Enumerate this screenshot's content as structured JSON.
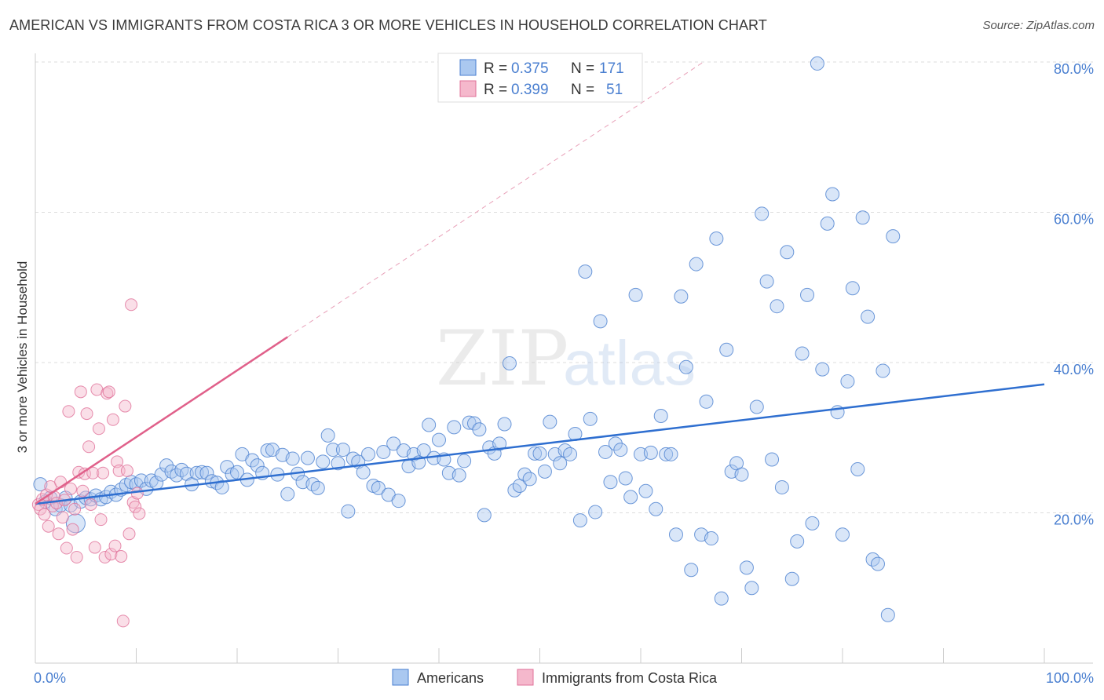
{
  "title": "AMERICAN VS IMMIGRANTS FROM COSTA RICA 3 OR MORE VEHICLES IN HOUSEHOLD CORRELATION CHART",
  "source": "Source: ZipAtlas.com",
  "watermark": {
    "zip": "ZIP",
    "atlas": "atlas"
  },
  "colors": {
    "blue": "#4a7fd0",
    "blue_fill": "#aac8f0",
    "blue_line": "#2f6fd0",
    "pink": "#e07098",
    "pink_fill": "#f5b8cc",
    "pink_line": "#e0608a",
    "grid": "#dcdcdc",
    "axis": "#cccccc"
  },
  "legend": {
    "r_label": "R =",
    "n_label": "N =",
    "americans": {
      "r": "0.375",
      "n": "171"
    },
    "costa_rica": {
      "r": "0.399",
      "n": "51"
    }
  },
  "chart_data": {
    "type": "scatter",
    "ylabel": "3 or more Vehicles in Household",
    "x_ticks": [
      "0.0%",
      "100.0%"
    ],
    "y_ticks": [
      "20.0%",
      "40.0%",
      "60.0%",
      "80.0%"
    ],
    "x_range": [
      0,
      100
    ],
    "y_range": [
      0,
      80
    ],
    "grid": true,
    "legend_position": "top-center",
    "series": [
      {
        "name": "Americans",
        "trend": {
          "x": [
            0,
            100
          ],
          "y": [
            21.2,
            37.1
          ]
        },
        "points": [
          [
            0.5,
            23.8
          ],
          [
            1,
            21.5
          ],
          [
            1.5,
            22
          ],
          [
            2,
            20.5
          ],
          [
            2.5,
            21
          ],
          [
            3,
            22
          ],
          [
            3.5,
            21
          ],
          [
            4,
            18.6
          ],
          [
            4.5,
            21.5
          ],
          [
            5,
            22
          ],
          [
            5.5,
            21.8
          ],
          [
            6,
            22.3
          ],
          [
            6.5,
            21.8
          ],
          [
            7,
            22.1
          ],
          [
            7.5,
            22.8
          ],
          [
            8,
            22.4
          ],
          [
            8.5,
            23.1
          ],
          [
            9,
            23.7
          ],
          [
            9.5,
            24.1
          ],
          [
            10,
            23.8
          ],
          [
            10.5,
            24.3
          ],
          [
            11,
            23.2
          ],
          [
            11.5,
            24.3
          ],
          [
            12,
            24
          ],
          [
            12.5,
            25.1
          ],
          [
            13,
            26.3
          ],
          [
            13.5,
            25.5
          ],
          [
            14,
            25
          ],
          [
            14.5,
            25.7
          ],
          [
            15,
            25.2
          ],
          [
            15.5,
            23.8
          ],
          [
            16,
            25.3
          ],
          [
            16.5,
            25.4
          ],
          [
            17,
            25.3
          ],
          [
            17.5,
            24.2
          ],
          [
            18,
            24
          ],
          [
            18.5,
            23.4
          ],
          [
            19,
            26.1
          ],
          [
            19.5,
            25.1
          ],
          [
            20,
            25.4
          ],
          [
            20.5,
            27.8
          ],
          [
            21,
            24.4
          ],
          [
            21.5,
            27
          ],
          [
            22,
            26.3
          ],
          [
            22.5,
            25.3
          ],
          [
            23,
            28.3
          ],
          [
            23.5,
            28.4
          ],
          [
            24,
            25.1
          ],
          [
            24.5,
            27.7
          ],
          [
            25,
            22.5
          ],
          [
            25.5,
            27.2
          ],
          [
            26,
            25.2
          ],
          [
            26.5,
            24.1
          ],
          [
            27,
            27.3
          ],
          [
            27.5,
            23.8
          ],
          [
            28,
            23.3
          ],
          [
            28.5,
            26.8
          ],
          [
            29,
            30.3
          ],
          [
            29.5,
            28.4
          ],
          [
            30,
            26.6
          ],
          [
            30.5,
            28.4
          ],
          [
            31,
            20.2
          ],
          [
            31.5,
            27.2
          ],
          [
            32,
            26.8
          ],
          [
            32.5,
            25.4
          ],
          [
            33,
            27.8
          ],
          [
            33.5,
            23.6
          ],
          [
            34,
            23.3
          ],
          [
            34.5,
            28.1
          ],
          [
            35,
            22.4
          ],
          [
            35.5,
            29.2
          ],
          [
            36,
            21.6
          ],
          [
            36.5,
            28.3
          ],
          [
            37,
            26.2
          ],
          [
            37.5,
            27.8
          ],
          [
            38,
            26.7
          ],
          [
            38.5,
            28.3
          ],
          [
            39,
            31.7
          ],
          [
            39.5,
            27.3
          ],
          [
            40,
            29.7
          ],
          [
            40.5,
            27.1
          ],
          [
            41,
            25.3
          ],
          [
            41.5,
            31.4
          ],
          [
            42,
            25
          ],
          [
            42.5,
            26.9
          ],
          [
            43,
            32
          ],
          [
            43.5,
            31.9
          ],
          [
            44,
            31.1
          ],
          [
            44.5,
            19.7
          ],
          [
            45,
            28.7
          ],
          [
            45.5,
            27.9
          ],
          [
            46,
            29.2
          ],
          [
            46.5,
            31.8
          ],
          [
            47,
            39.9
          ],
          [
            47.5,
            23
          ],
          [
            48,
            23.6
          ],
          [
            48.5,
            25.1
          ],
          [
            49,
            24.5
          ],
          [
            49.5,
            27.9
          ],
          [
            50,
            27.9
          ],
          [
            50.5,
            25.5
          ],
          [
            51,
            32.1
          ],
          [
            51.5,
            27.8
          ],
          [
            52,
            26.6
          ],
          [
            52.5,
            28.3
          ],
          [
            53,
            27.8
          ],
          [
            53.5,
            30.5
          ],
          [
            54,
            19
          ],
          [
            54.5,
            52.1
          ],
          [
            55,
            32.5
          ],
          [
            55.5,
            20.1
          ],
          [
            56,
            45.5
          ],
          [
            56.5,
            28.1
          ],
          [
            57,
            24.1
          ],
          [
            57.5,
            29.2
          ],
          [
            58,
            28.4
          ],
          [
            58.5,
            24.6
          ],
          [
            59,
            22.1
          ],
          [
            59.5,
            49
          ],
          [
            60,
            27.8
          ],
          [
            60.5,
            22.9
          ],
          [
            61,
            28
          ],
          [
            61.5,
            20.5
          ],
          [
            62,
            32.9
          ],
          [
            62.5,
            27.8
          ],
          [
            63,
            27.8
          ],
          [
            63.5,
            17.1
          ],
          [
            64,
            48.8
          ],
          [
            64.5,
            39.4
          ],
          [
            65,
            12.4
          ],
          [
            65.5,
            53.1
          ],
          [
            66,
            17.1
          ],
          [
            66.5,
            34.8
          ],
          [
            67,
            16.6
          ],
          [
            67.5,
            56.5
          ],
          [
            68,
            8.6
          ],
          [
            68.5,
            41.7
          ],
          [
            69,
            25.5
          ],
          [
            69.5,
            26.6
          ],
          [
            70,
            25.1
          ],
          [
            70.5,
            12.7
          ],
          [
            71,
            10
          ],
          [
            71.5,
            34.1
          ],
          [
            72,
            59.8
          ],
          [
            72.5,
            50.8
          ],
          [
            73,
            27.1
          ],
          [
            73.5,
            47.5
          ],
          [
            74,
            23.4
          ],
          [
            74.5,
            54.7
          ],
          [
            75,
            11.2
          ],
          [
            75.5,
            16.2
          ],
          [
            76,
            41.2
          ],
          [
            76.5,
            49
          ],
          [
            77,
            18.6
          ],
          [
            77.5,
            79.8
          ],
          [
            78,
            39.1
          ],
          [
            78.5,
            58.5
          ],
          [
            79,
            62.4
          ],
          [
            79.5,
            33.4
          ],
          [
            80,
            17.1
          ],
          [
            80.5,
            37.5
          ],
          [
            81,
            49.9
          ],
          [
            81.5,
            25.8
          ],
          [
            82,
            59.3
          ],
          [
            82.5,
            46.1
          ],
          [
            83,
            13.8
          ],
          [
            83.5,
            13.2
          ],
          [
            84,
            38.9
          ],
          [
            84.5,
            6.4
          ],
          [
            85,
            56.8
          ]
        ]
      },
      {
        "name": "Immigrants from Costa Rica",
        "trend": {
          "x": [
            0,
            25
          ],
          "y": [
            21.2,
            43.4
          ]
        },
        "points": [
          [
            0.3,
            21.1
          ],
          [
            0.5,
            20.5
          ],
          [
            0.7,
            21.8
          ],
          [
            0.9,
            19.8
          ],
          [
            1.1,
            22.4
          ],
          [
            1.3,
            18.2
          ],
          [
            1.5,
            23.5
          ],
          [
            1.7,
            20.9
          ],
          [
            1.9,
            22.1
          ],
          [
            2.1,
            21.3
          ],
          [
            2.3,
            17.2
          ],
          [
            2.5,
            24.1
          ],
          [
            2.7,
            19.4
          ],
          [
            2.9,
            21.7
          ],
          [
            3.1,
            15.3
          ],
          [
            3.3,
            33.5
          ],
          [
            3.5,
            23.2
          ],
          [
            3.7,
            17.8
          ],
          [
            3.9,
            20.5
          ],
          [
            4.1,
            14.1
          ],
          [
            4.3,
            25.4
          ],
          [
            4.5,
            36.1
          ],
          [
            4.7,
            22.9
          ],
          [
            4.9,
            25.2
          ],
          [
            5.1,
            33.2
          ],
          [
            5.3,
            28.8
          ],
          [
            5.5,
            21.1
          ],
          [
            5.7,
            25.3
          ],
          [
            5.9,
            15.4
          ],
          [
            6.1,
            36.4
          ],
          [
            6.3,
            31.2
          ],
          [
            6.5,
            19.1
          ],
          [
            6.7,
            25.3
          ],
          [
            6.9,
            14.1
          ],
          [
            7.1,
            35.9
          ],
          [
            7.3,
            36.1
          ],
          [
            7.5,
            14.5
          ],
          [
            7.7,
            32.4
          ],
          [
            7.9,
            15.6
          ],
          [
            8.1,
            26.8
          ],
          [
            8.3,
            25.6
          ],
          [
            8.5,
            14.2
          ],
          [
            8.7,
            5.6
          ],
          [
            8.9,
            34.2
          ],
          [
            9.1,
            25.6
          ],
          [
            9.3,
            17.2
          ],
          [
            9.5,
            47.7
          ],
          [
            9.7,
            21.4
          ],
          [
            9.9,
            20.8
          ],
          [
            10.1,
            22.6
          ],
          [
            10.3,
            19.9
          ]
        ]
      }
    ]
  },
  "bottom_legend": [
    "Americans",
    "Immigrants from Costa Rica"
  ]
}
